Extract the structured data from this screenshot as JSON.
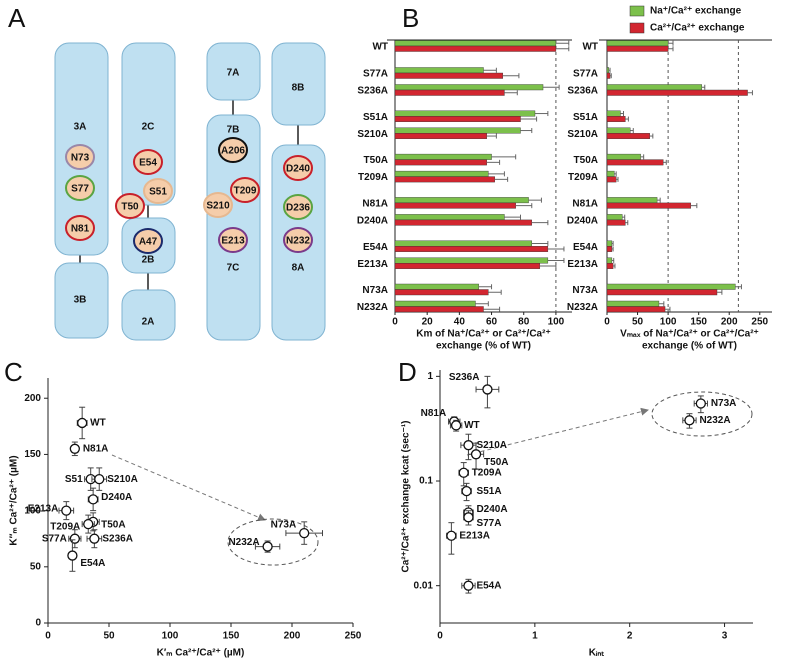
{
  "panel_labels": [
    "A",
    "B",
    "C",
    "D"
  ],
  "diagram": {
    "domains": [
      "3A",
      "3B",
      "2C",
      "2B",
      "2A",
      "7A",
      "7B",
      "7C",
      "8B",
      "8A"
    ],
    "residues": [
      "N73",
      "S77",
      "N81",
      "E54",
      "S51",
      "T50",
      "A47",
      "A206",
      "T209",
      "S210",
      "E213",
      "D240",
      "D236",
      "N232"
    ]
  },
  "chart_data": [
    {
      "type": "bar",
      "categories": [
        "WT",
        "S77A",
        "S236A",
        "S51A",
        "S210A",
        "T50A",
        "T209A",
        "N81A",
        "D240A",
        "E54A",
        "E213A",
        "N73A",
        "N232A"
      ],
      "series": [
        {
          "name": "Na⁺/Ca²⁺ exchange",
          "color": "#7cc04b",
          "values": [
            100,
            55,
            92,
            87,
            78,
            60,
            58,
            83,
            68,
            85,
            95,
            52,
            50
          ],
          "errors": [
            8,
            8,
            10,
            8,
            7,
            15,
            10,
            8,
            10,
            10,
            10,
            8,
            8
          ]
        },
        {
          "name": "Ca²⁺/Ca²⁺ exchange",
          "color": "#d22630",
          "values": [
            100,
            67,
            68,
            78,
            57,
            57,
            62,
            75,
            85,
            95,
            90,
            58,
            55
          ],
          "errors": [
            8,
            10,
            8,
            10,
            6,
            8,
            8,
            10,
            10,
            10,
            10,
            8,
            10
          ]
        }
      ],
      "xlabel": [
        "Km of Na⁺/Ca²⁺ or Ca²⁺/Ca²⁺",
        "exchange (% of WT)"
      ],
      "xlim": [
        0,
        110
      ],
      "xticks": [
        0,
        20,
        40,
        60,
        80,
        100
      ],
      "reference_lines": [
        100
      ]
    },
    {
      "type": "bar",
      "categories": [
        "WT",
        "S77A",
        "S236A",
        "S51A",
        "S210A",
        "T50A",
        "T209A",
        "N81A",
        "D240A",
        "E54A",
        "E213A",
        "N73A",
        "N232A"
      ],
      "series": [
        {
          "color": "#7cc04b",
          "values": [
            100,
            3,
            155,
            22,
            38,
            55,
            12,
            82,
            25,
            8,
            8,
            210,
            85
          ],
          "errors": [
            8,
            2,
            5,
            5,
            5,
            5,
            3,
            5,
            4,
            2,
            3,
            10,
            8
          ]
        },
        {
          "color": "#d22630",
          "values": [
            100,
            5,
            230,
            30,
            70,
            92,
            15,
            137,
            30,
            8,
            10,
            180,
            95
          ],
          "errors": [
            8,
            2,
            8,
            5,
            5,
            5,
            3,
            10,
            4,
            2,
            3,
            8,
            8
          ]
        }
      ],
      "xlabel": [
        "Vₘₐₓ of Na⁺/Ca²⁺ or Ca²⁺/Ca²⁺",
        "exchange (% of WT)"
      ],
      "xlim": [
        0,
        270
      ],
      "xticks": [
        0,
        50,
        100,
        150,
        200,
        250
      ],
      "reference_lines": [
        100,
        215
      ]
    },
    {
      "type": "scatter",
      "labels": [
        "WT",
        "N81A",
        "S51",
        "S210A",
        "D240A",
        "E213A",
        "T50A",
        "T209A",
        "S236A",
        "S77A",
        "E54A",
        "N73A",
        "N232A"
      ],
      "x": [
        28,
        22,
        35,
        42,
        37,
        15,
        37,
        33,
        38,
        22,
        20,
        210,
        180
      ],
      "y": [
        178,
        155,
        128,
        128,
        110,
        100,
        90,
        88,
        75,
        75,
        60,
        80,
        68
      ],
      "xerr": [
        4,
        3,
        5,
        6,
        4,
        6,
        5,
        5,
        6,
        5,
        3,
        15,
        10
      ],
      "yerr": [
        14,
        6,
        10,
        10,
        10,
        8,
        8,
        8,
        8,
        8,
        14,
        10,
        5
      ],
      "xlabel": "K′ₘ Ca²⁺/Ca²⁺ (µM)",
      "ylabel": "K′′ₘ Ca²⁺/Ca²⁺ (µM)",
      "xlim": [
        0,
        250
      ],
      "ylim": [
        0,
        218
      ],
      "xticks": [
        0,
        50,
        100,
        150,
        200,
        250
      ],
      "yticks": [
        0,
        50,
        100,
        150,
        200
      ]
    },
    {
      "type": "scatter",
      "labels": [
        "S236A",
        "N81A",
        "WT",
        "S210A",
        "T50A",
        "T209A",
        "S51A",
        "D240A",
        "S77A",
        "E213A",
        "E54A",
        "N73A",
        "N232A"
      ],
      "x": [
        0.5,
        0.15,
        0.17,
        0.3,
        0.38,
        0.25,
        0.28,
        0.3,
        0.3,
        0.12,
        0.3,
        2.75,
        2.63
      ],
      "y": [
        0.75,
        0.37,
        0.34,
        0.22,
        0.18,
        0.12,
        0.08,
        0.05,
        0.045,
        0.03,
        0.01,
        0.55,
        0.38
      ],
      "xerr": [
        0.12,
        0.06,
        0.06,
        0.08,
        0.08,
        0.05,
        0.05,
        0.05,
        0.05,
        0.05,
        0.07,
        0.07,
        0.07
      ],
      "yerr": [
        0.25,
        0.04,
        0.04,
        0.06,
        0.05,
        0.03,
        0.015,
        0.008,
        0.007,
        0.01,
        0.0015,
        0.1,
        0.06
      ],
      "xlabel": "Kᵢₙₜ",
      "ylabel": "Ca²⁺/Ca²⁺ exchange kcat (sec⁻¹)",
      "xlim": [
        0,
        3.3
      ],
      "ylim": [
        0.0044,
        1.15
      ],
      "ylog": true,
      "xticks": [
        0,
        1,
        2,
        3
      ],
      "yticks": [
        0.01,
        0.1,
        1
      ]
    }
  ]
}
